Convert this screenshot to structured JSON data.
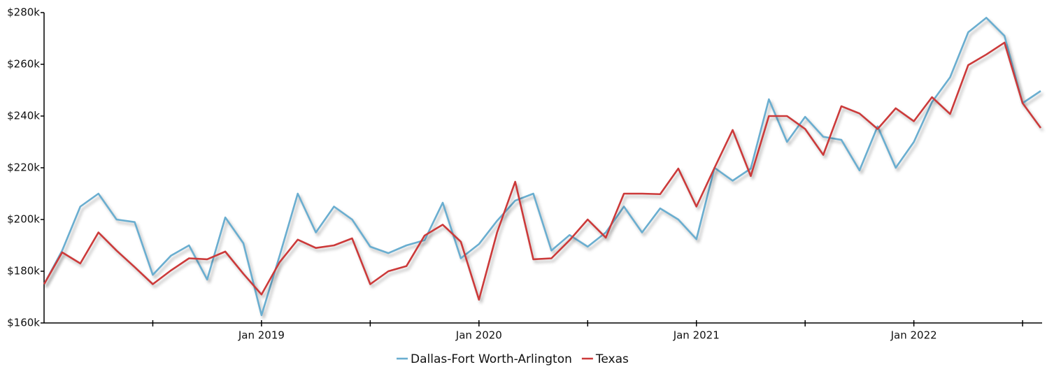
{
  "chart_data": {
    "type": "line",
    "x": [
      "2018-01",
      "2018-02",
      "2018-03",
      "2018-04",
      "2018-05",
      "2018-06",
      "2018-07",
      "2018-08",
      "2018-09",
      "2018-10",
      "2018-11",
      "2018-12",
      "2019-01",
      "2019-02",
      "2019-03",
      "2019-04",
      "2019-05",
      "2019-06",
      "2019-07",
      "2019-08",
      "2019-09",
      "2019-10",
      "2019-11",
      "2019-12",
      "2020-01",
      "2020-02",
      "2020-03",
      "2020-04",
      "2020-05",
      "2020-06",
      "2020-07",
      "2020-08",
      "2020-09",
      "2020-10",
      "2020-11",
      "2020-12",
      "2021-01",
      "2021-02",
      "2021-03",
      "2021-04",
      "2021-05",
      "2021-06",
      "2021-07",
      "2021-08",
      "2021-09",
      "2021-10",
      "2021-11",
      "2021-12",
      "2022-01",
      "2022-02",
      "2022-03",
      "2022-04",
      "2022-05",
      "2022-06",
      "2022-07",
      "2022-08"
    ],
    "series": [
      {
        "name": "Dallas-Fort Worth-Arlington",
        "color": "#6aaed0",
        "values": [
          175000,
          188000,
          205000,
          210000,
          200000,
          199000,
          178600,
          186000,
          190000,
          176800,
          200800,
          190800,
          163000,
          186000,
          210000,
          195000,
          205000,
          200000,
          189500,
          187000,
          190000,
          192000,
          206500,
          185000,
          190500,
          199500,
          207300,
          210000,
          188000,
          194000,
          189500,
          195000,
          205000,
          195000,
          204300,
          200000,
          192400,
          220000,
          215000,
          219700,
          246500,
          230000,
          239700,
          232000,
          230800,
          219000,
          236000,
          220000,
          230000,
          245400,
          255000,
          272400,
          278000,
          271000,
          245000,
          249700
        ]
      },
      {
        "name": "Texas",
        "color": "#cc3a3a",
        "values": [
          175000,
          187300,
          183000,
          195000,
          188000,
          181600,
          175000,
          180300,
          185000,
          184600,
          187600,
          179000,
          171000,
          183500,
          192200,
          189000,
          190000,
          192700,
          175000,
          180000,
          182000,
          193800,
          198000,
          191400,
          169000,
          195000,
          214600,
          184600,
          185000,
          192000,
          200000,
          193000,
          210000,
          210000,
          209800,
          219700,
          205000,
          220000,
          234600,
          216800,
          240000,
          240000,
          235000,
          225000,
          243800,
          241000,
          235000,
          243000,
          238000,
          247300,
          240800,
          259700,
          263800,
          268400,
          245000,
          235400
        ]
      }
    ],
    "ylim": [
      160000,
      280000
    ],
    "yticks": [
      {
        "value": 160000,
        "label": "$160k"
      },
      {
        "value": 180000,
        "label": "$180k"
      },
      {
        "value": 200000,
        "label": "$200k"
      },
      {
        "value": 220000,
        "label": "$220k"
      },
      {
        "value": 240000,
        "label": "$240k"
      },
      {
        "value": 260000,
        "label": "$260k"
      },
      {
        "value": 280000,
        "label": "$280k"
      }
    ],
    "xticks": [
      {
        "value": "2019-01",
        "label": "Jan 2019"
      },
      {
        "value": "2020-01",
        "label": "Jan 2020"
      },
      {
        "value": "2021-01",
        "label": "Jan 2021"
      },
      {
        "value": "2022-01",
        "label": "Jan 2022"
      }
    ],
    "xminor_ticks": [
      "2018-07",
      "2019-07",
      "2020-07",
      "2021-07",
      "2022-07"
    ],
    "legend": "bottom"
  }
}
